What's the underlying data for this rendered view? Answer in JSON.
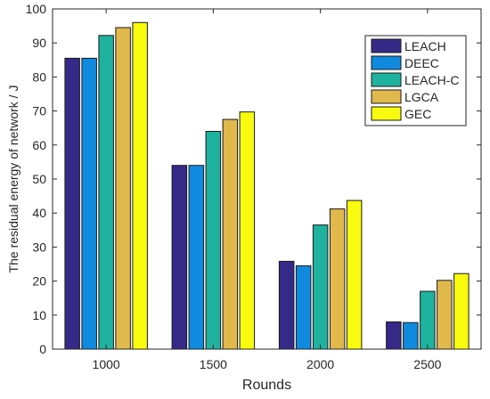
{
  "chart_data": {
    "type": "bar",
    "title": "",
    "xlabel": "Rounds",
    "ylabel": "The residual energy of network / J",
    "categories": [
      "1000",
      "1500",
      "2000",
      "2500"
    ],
    "ylim": [
      0,
      100
    ],
    "yticks": [
      0,
      10,
      20,
      30,
      40,
      50,
      60,
      70,
      80,
      90,
      100
    ],
    "grid": false,
    "legend_position": "top-right",
    "series": [
      {
        "name": "LEACH",
        "color": "#352A87",
        "values": [
          85.5,
          54.0,
          25.8,
          8.0
        ]
      },
      {
        "name": "DEEC",
        "color": "#0F8ADE",
        "values": [
          85.5,
          54.0,
          24.5,
          7.8
        ]
      },
      {
        "name": "LEACH-C",
        "color": "#1FB29E",
        "values": [
          92.2,
          64.0,
          36.5,
          17.0
        ]
      },
      {
        "name": "LGCA",
        "color": "#E1B84C",
        "values": [
          94.5,
          67.5,
          41.2,
          20.2
        ]
      },
      {
        "name": "GEC",
        "color": "#F9FB0E",
        "values": [
          96.0,
          69.7,
          43.7,
          22.2
        ]
      }
    ]
  }
}
